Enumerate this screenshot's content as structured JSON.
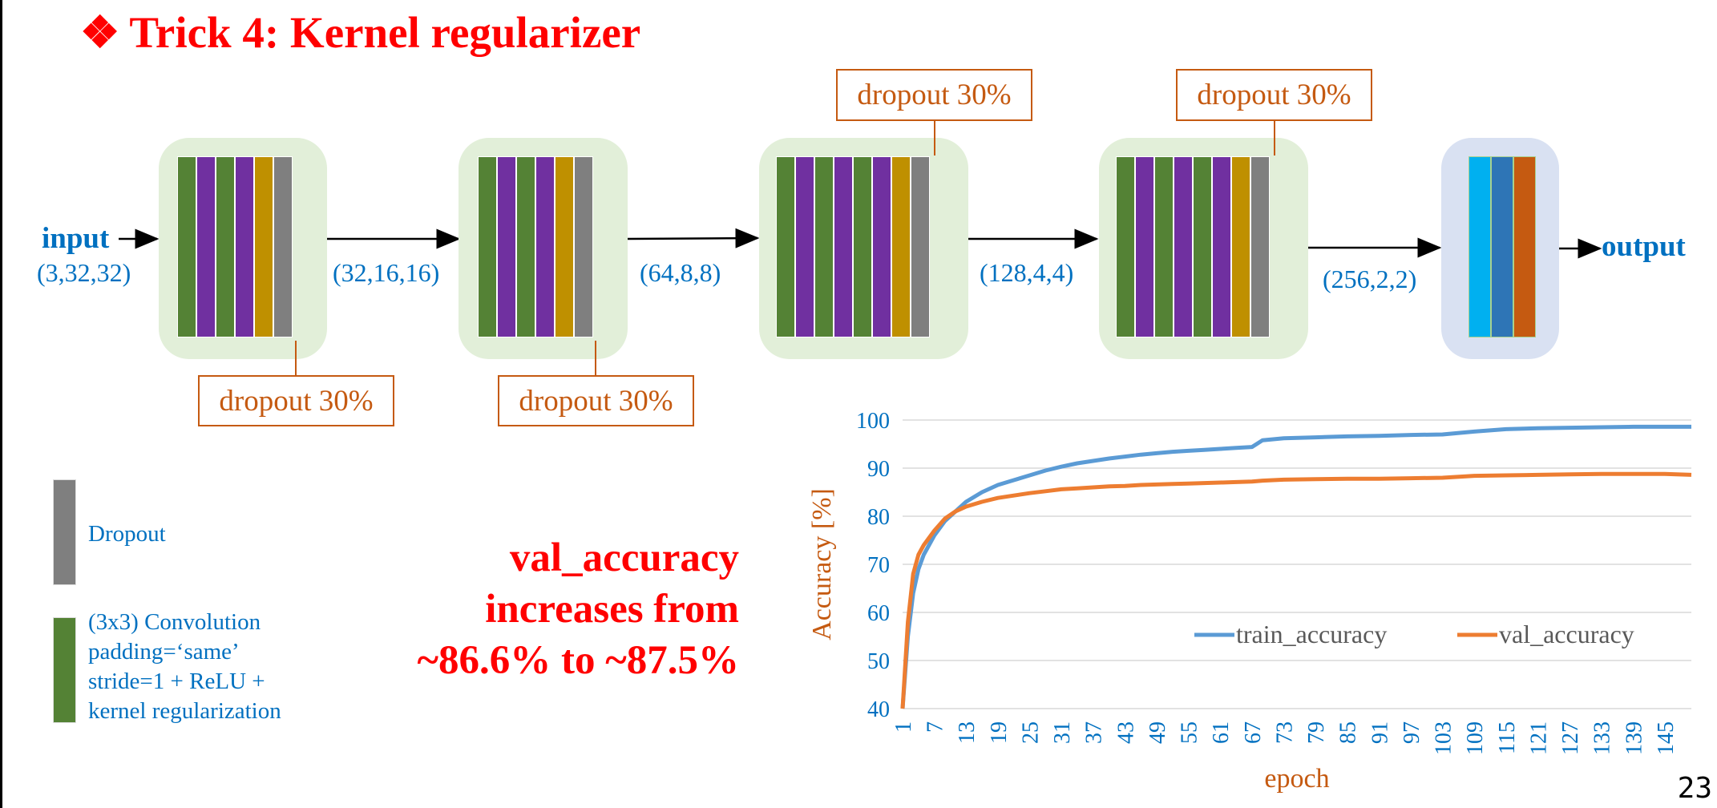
{
  "title": {
    "bullet": "❖",
    "text": "Trick 4: Kernel regularizer"
  },
  "io": {
    "input_label": "input",
    "input_shape": "(3,32,32)",
    "output_label": "output"
  },
  "shapes": [
    "(32,16,16)",
    "(64,8,8)",
    "(128,4,4)",
    "(256,2,2)"
  ],
  "dropout_labels": [
    "dropout 30%",
    "dropout 30%",
    "dropout 30%",
    "dropout 30%"
  ],
  "colors": {
    "conv": "#548235",
    "batchnorm_purple": "#7030a0",
    "pool": "#bf9000",
    "dropout": "#7f7f7f",
    "dense_light": "#00b0f0",
    "dense_mid": "#2e75b6",
    "dense_out": "#c55a11",
    "train": "#5b9bd5",
    "val": "#ed7d31"
  },
  "legend": {
    "dropout": "Dropout",
    "conv_lines": [
      "(3x3) Convolution",
      "padding=‘same’",
      "stride=1 + ReLU +",
      "kernel regularization"
    ]
  },
  "claim": [
    "val_accuracy",
    "increases from",
    "~86.6% to ~87.5%"
  ],
  "page_number": "23",
  "chart_data": {
    "type": "line",
    "title": "",
    "xlabel": "epoch",
    "ylabel": "Accuracy [%]",
    "ylim": [
      40,
      100
    ],
    "yticks": [
      40,
      50,
      60,
      70,
      80,
      90,
      100
    ],
    "xtick_labels": [
      "1",
      "7",
      "13",
      "19",
      "25",
      "31",
      "37",
      "43",
      "49",
      "55",
      "61",
      "67",
      "73",
      "79",
      "85",
      "91",
      "97",
      "103",
      "109",
      "115",
      "121",
      "127",
      "133",
      "139",
      "145"
    ],
    "grid": true,
    "legend_position": "bottom-right inside",
    "x": [
      1,
      2,
      3,
      4,
      5,
      6,
      7,
      9,
      11,
      13,
      16,
      19,
      22,
      25,
      28,
      31,
      34,
      37,
      40,
      43,
      46,
      49,
      52,
      55,
      58,
      61,
      64,
      67,
      69,
      73,
      79,
      85,
      91,
      97,
      103,
      109,
      115,
      121,
      127,
      133,
      139,
      145,
      150
    ],
    "series": [
      {
        "name": "train_accuracy",
        "values": [
          40,
          55,
          64,
          69,
          72,
          74,
          76,
          79,
          81,
          83,
          85,
          86.5,
          87.5,
          88.5,
          89.5,
          90.3,
          91,
          91.5,
          92,
          92.4,
          92.8,
          93.1,
          93.4,
          93.6,
          93.8,
          94,
          94.2,
          94.4,
          95.8,
          96.2,
          96.4,
          96.6,
          96.7,
          96.9,
          97,
          97.6,
          98.1,
          98.3,
          98.4,
          98.5,
          98.6,
          98.6,
          98.6
        ]
      },
      {
        "name": "val_accuracy",
        "values": [
          40,
          58,
          68,
          72,
          74,
          75.5,
          77,
          79.5,
          81,
          82,
          83,
          83.8,
          84.3,
          84.8,
          85.2,
          85.6,
          85.8,
          86,
          86.2,
          86.3,
          86.5,
          86.6,
          86.7,
          86.8,
          86.9,
          87,
          87.1,
          87.2,
          87.4,
          87.6,
          87.7,
          87.8,
          87.8,
          87.9,
          88,
          88.4,
          88.5,
          88.6,
          88.7,
          88.8,
          88.8,
          88.8,
          88.6
        ]
      }
    ]
  }
}
